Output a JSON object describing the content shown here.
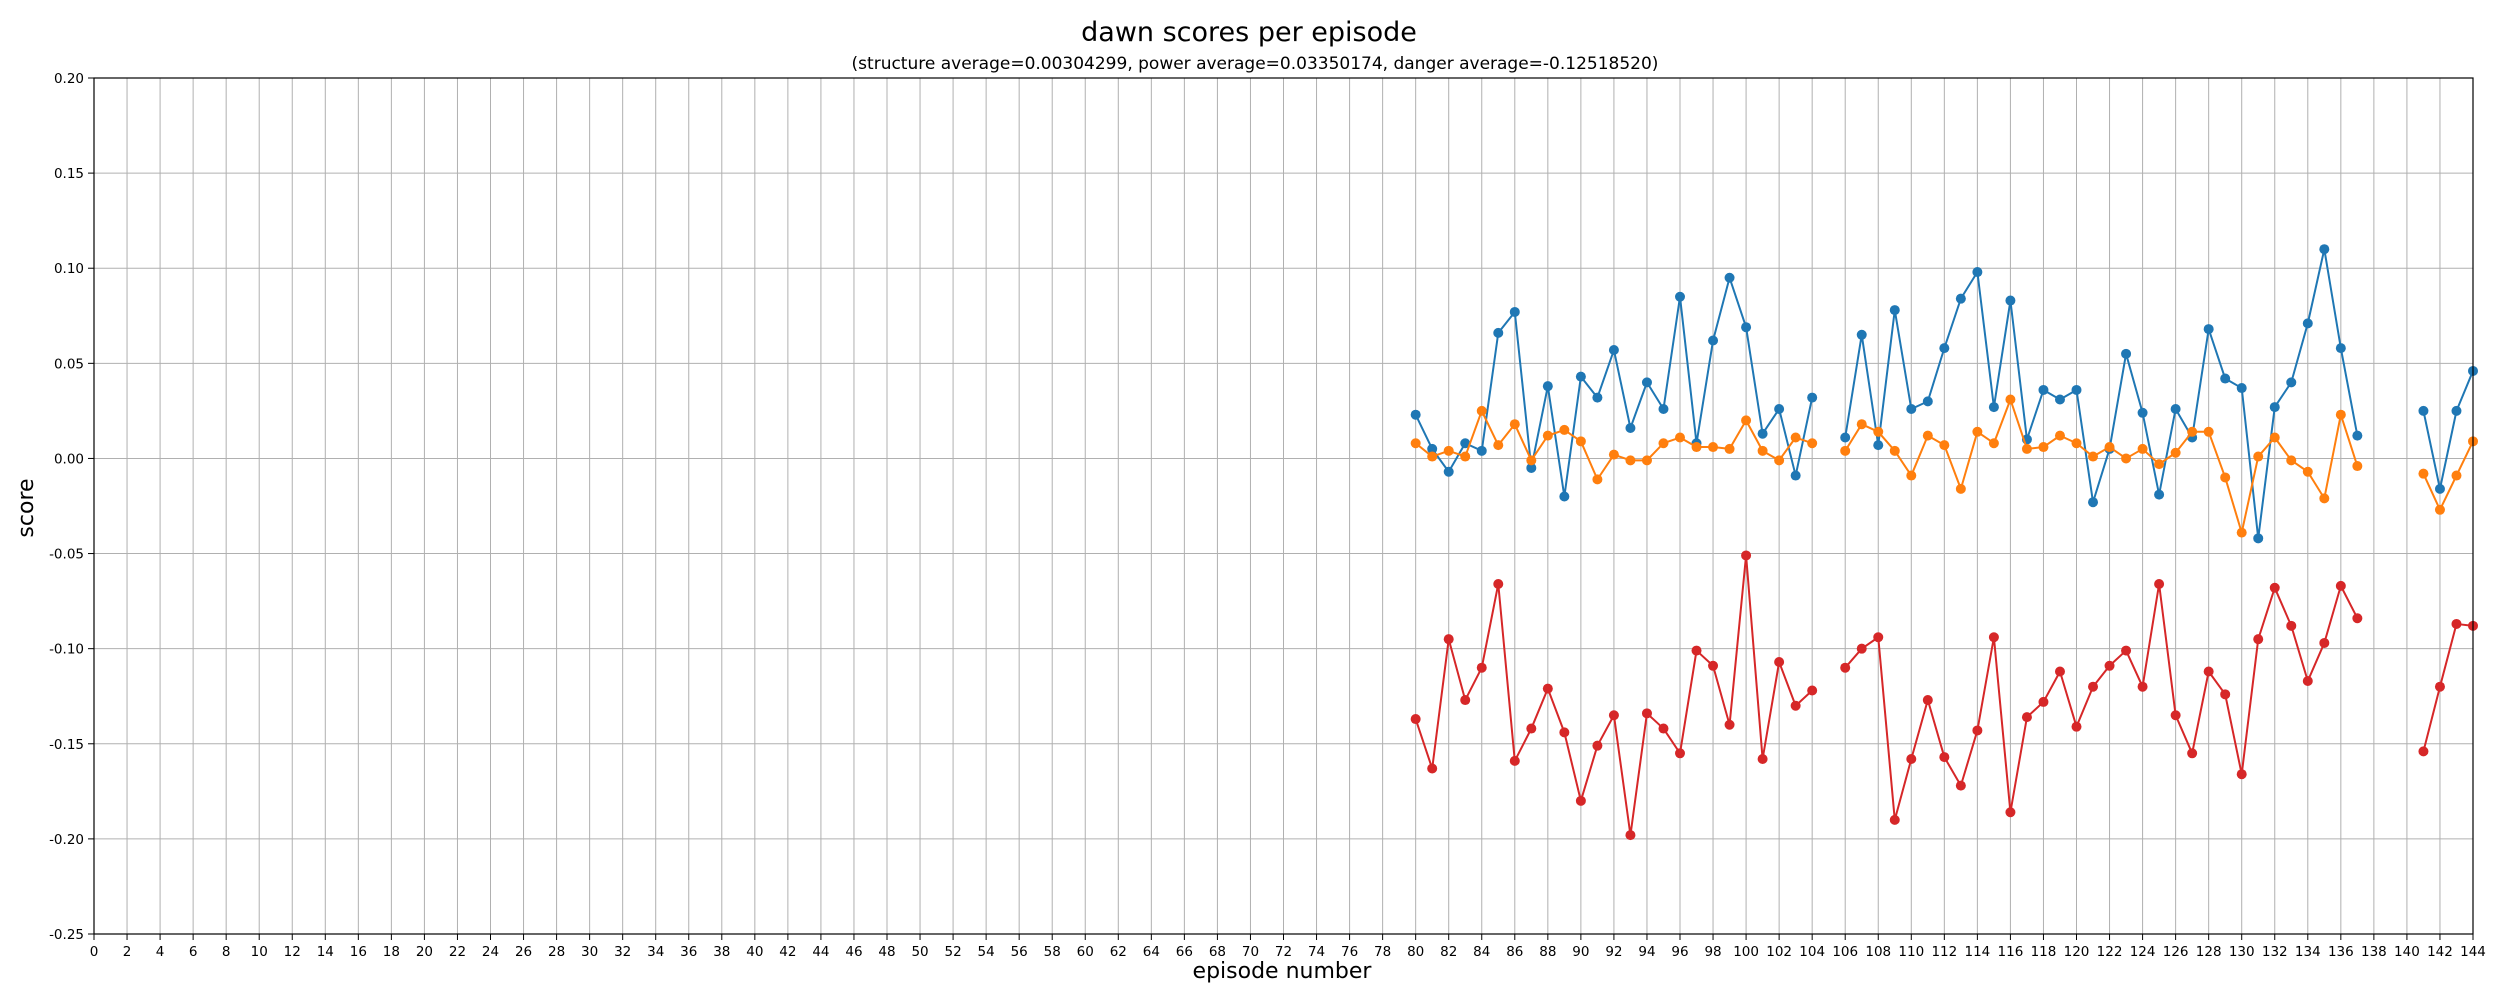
{
  "chart_data": {
    "type": "line",
    "title": "dawn scores per episode",
    "subtitle": "(structure average=0.00304299, power average=0.03350174, danger average=-0.12518520)",
    "xlabel": "episode number",
    "ylabel": "score",
    "xlim": [
      0,
      144
    ],
    "ylim": [
      -0.25,
      0.2
    ],
    "xticks": [
      0,
      2,
      4,
      6,
      8,
      10,
      12,
      14,
      16,
      18,
      20,
      22,
      24,
      26,
      28,
      30,
      32,
      34,
      36,
      38,
      40,
      42,
      44,
      46,
      48,
      50,
      52,
      54,
      56,
      58,
      60,
      62,
      64,
      66,
      68,
      70,
      72,
      74,
      76,
      78,
      80,
      82,
      84,
      86,
      88,
      90,
      92,
      94,
      96,
      98,
      100,
      102,
      104,
      106,
      108,
      110,
      112,
      114,
      116,
      118,
      120,
      122,
      124,
      126,
      128,
      130,
      132,
      134,
      136,
      138,
      140,
      142,
      144
    ],
    "yticks": [
      -0.25,
      -0.2,
      -0.15,
      -0.1,
      -0.05,
      0.0,
      0.05,
      0.1,
      0.15,
      0.2
    ],
    "ytick_labels": [
      "-0.25",
      "-0.20",
      "-0.15",
      "-0.10",
      "-0.05",
      "0.00",
      "0.05",
      "0.10",
      "0.15",
      "0.20"
    ],
    "grid": true,
    "colors": {
      "blue": "#1f77b4",
      "orange": "#ff7f0e",
      "red": "#d62728"
    },
    "series": [
      {
        "color": "#1f77b4",
        "segments": [
          {
            "x": [
              80,
              81,
              82,
              83,
              84,
              85,
              86,
              87,
              88,
              89,
              90,
              91,
              92,
              93,
              94,
              95,
              96,
              97,
              98,
              99,
              100,
              101,
              102,
              103,
              104
            ],
            "y": [
              0.023,
              0.005,
              -0.007,
              0.008,
              0.004,
              0.066,
              0.077,
              -0.005,
              0.038,
              -0.02,
              0.043,
              0.032,
              0.057,
              0.016,
              0.04,
              0.026,
              0.085,
              0.008,
              0.062,
              0.095,
              0.069,
              0.013,
              0.026,
              -0.009,
              0.032
            ]
          },
          {
            "x": [
              106,
              107,
              108,
              109,
              110,
              111,
              112,
              113,
              114,
              115,
              116,
              117,
              118,
              119,
              120,
              121,
              122,
              123,
              124,
              125,
              126,
              127,
              128,
              129,
              130,
              131,
              132,
              133,
              134,
              135,
              136,
              137
            ],
            "y": [
              0.011,
              0.065,
              0.007,
              0.078,
              0.026,
              0.03,
              0.058,
              0.084,
              0.098,
              0.027,
              0.083,
              0.01,
              0.036,
              0.031,
              0.036,
              -0.023,
              0.005,
              0.055,
              0.024,
              -0.019,
              0.026,
              0.011,
              0.068,
              0.042,
              0.037,
              -0.042,
              0.027,
              0.04,
              0.071,
              0.11,
              0.058,
              0.012
            ]
          },
          {
            "x": [
              141,
              142,
              143,
              144
            ],
            "y": [
              0.025,
              -0.016,
              0.025,
              0.046
            ]
          }
        ]
      },
      {
        "color": "#ff7f0e",
        "segments": [
          {
            "x": [
              80,
              81,
              82,
              83,
              84,
              85,
              86,
              87,
              88,
              89,
              90,
              91,
              92,
              93,
              94,
              95,
              96,
              97,
              98,
              99,
              100,
              101,
              102,
              103,
              104
            ],
            "y": [
              0.008,
              0.001,
              0.004,
              0.001,
              0.025,
              0.007,
              0.018,
              -0.001,
              0.012,
              0.015,
              0.009,
              -0.011,
              0.002,
              -0.001,
              -0.001,
              0.008,
              0.011,
              0.006,
              0.006,
              0.005,
              0.02,
              0.004,
              -0.001,
              0.011,
              0.008
            ]
          },
          {
            "x": [
              106,
              107,
              108,
              109,
              110,
              111,
              112,
              113,
              114,
              115,
              116,
              117,
              118,
              119,
              120,
              121,
              122,
              123,
              124,
              125,
              126,
              127,
              128,
              129,
              130,
              131,
              132,
              133,
              134,
              135,
              136,
              137
            ],
            "y": [
              0.004,
              0.018,
              0.014,
              0.004,
              -0.009,
              0.012,
              0.007,
              -0.016,
              0.014,
              0.008,
              0.031,
              0.005,
              0.006,
              0.012,
              0.008,
              0.001,
              0.006,
              0.0,
              0.005,
              -0.003,
              0.003,
              0.014,
              0.014,
              -0.01,
              -0.039,
              0.001,
              0.011,
              -0.001,
              -0.007,
              -0.021,
              0.023,
              -0.004
            ]
          },
          {
            "x": [
              141,
              142,
              143,
              144
            ],
            "y": [
              -0.008,
              -0.027,
              -0.009,
              0.009
            ]
          }
        ]
      },
      {
        "color": "#d62728",
        "segments": [
          {
            "x": [
              80,
              81,
              82,
              83,
              84,
              85,
              86,
              87,
              88,
              89,
              90,
              91,
              92,
              93,
              94,
              95,
              96,
              97,
              98,
              99,
              100,
              101,
              102,
              103,
              104
            ],
            "y": [
              -0.137,
              -0.163,
              -0.095,
              -0.127,
              -0.11,
              -0.066,
              -0.159,
              -0.142,
              -0.121,
              -0.144,
              -0.18,
              -0.151,
              -0.135,
              -0.198,
              -0.134,
              -0.142,
              -0.155,
              -0.101,
              -0.109,
              -0.14,
              -0.051,
              -0.158,
              -0.107,
              -0.13,
              -0.122
            ]
          },
          {
            "x": [
              106,
              107,
              108,
              109,
              110,
              111,
              112,
              113,
              114,
              115,
              116,
              117,
              118,
              119,
              120,
              121,
              122,
              123,
              124,
              125,
              126,
              127,
              128,
              129,
              130,
              131,
              132,
              133,
              134,
              135,
              136,
              137
            ],
            "y": [
              -0.11,
              -0.1,
              -0.094,
              -0.19,
              -0.158,
              -0.127,
              -0.157,
              -0.172,
              -0.143,
              -0.094,
              -0.186,
              -0.136,
              -0.128,
              -0.112,
              -0.141,
              -0.12,
              -0.109,
              -0.101,
              -0.12,
              -0.066,
              -0.135,
              -0.155,
              -0.112,
              -0.124,
              -0.166,
              -0.095,
              -0.068,
              -0.088,
              -0.117,
              -0.097,
              -0.067,
              -0.084
            ]
          },
          {
            "x": [
              141,
              142,
              143,
              144
            ],
            "y": [
              -0.154,
              -0.12,
              -0.087,
              -0.088
            ]
          }
        ]
      }
    ]
  }
}
